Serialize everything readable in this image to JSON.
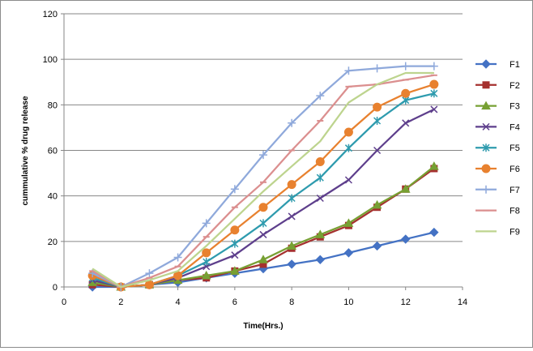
{
  "chart_data": {
    "type": "line",
    "title": "",
    "xlabel": "Time(Hrs.)",
    "ylabel": "cummulative % drug release",
    "xlim": [
      0,
      14
    ],
    "ylim": [
      0,
      120
    ],
    "xticks": [
      0,
      2,
      4,
      6,
      8,
      10,
      12,
      14
    ],
    "yticks": [
      0,
      20,
      40,
      60,
      80,
      100,
      120
    ],
    "grid": "horizontal",
    "legend": "right",
    "x": [
      1,
      2,
      3,
      4,
      5,
      6,
      7,
      8,
      9,
      10,
      11,
      12,
      13
    ],
    "series": [
      {
        "name": "F1",
        "color": "#4472C4",
        "marker": "diamond",
        "values": [
          0,
          0,
          1,
          2,
          4,
          6,
          8,
          10,
          12,
          15,
          18,
          21,
          24
        ]
      },
      {
        "name": "F2",
        "color": "#A5312F",
        "marker": "square",
        "values": [
          1,
          0,
          1,
          3,
          4,
          7,
          10,
          17,
          22,
          27,
          35,
          43,
          52
        ]
      },
      {
        "name": "F3",
        "color": "#77A033",
        "marker": "triangle",
        "values": [
          2,
          0,
          1,
          3,
          5,
          7,
          12,
          18,
          23,
          28,
          36,
          43,
          53
        ]
      },
      {
        "name": "F4",
        "color": "#5E3F8C",
        "marker": "x",
        "values": [
          3,
          0,
          1,
          4,
          9,
          14,
          23,
          31,
          39,
          47,
          60,
          72,
          78
        ]
      },
      {
        "name": "F5",
        "color": "#2E9BAE",
        "marker": "star",
        "values": [
          4,
          0,
          1,
          5,
          11,
          19,
          28,
          39,
          48,
          61,
          73,
          82,
          85
        ]
      },
      {
        "name": "F6",
        "color": "#E8812F",
        "marker": "circle",
        "values": [
          5,
          0,
          1,
          5,
          15,
          25,
          35,
          45,
          55,
          68,
          79,
          85,
          89
        ]
      },
      {
        "name": "F7",
        "color": "#8FA9DB",
        "marker": "plus",
        "values": [
          6,
          0,
          6,
          13,
          28,
          43,
          58,
          72,
          84,
          95,
          96,
          97,
          97
        ]
      },
      {
        "name": "F8",
        "color": "#DB8F8F",
        "marker": "dash",
        "values": [
          7,
          0,
          4,
          9,
          22,
          35,
          46,
          60,
          73,
          88,
          89,
          91,
          93
        ]
      },
      {
        "name": "F9",
        "color": "#BDD48E",
        "marker": "none",
        "values": [
          8,
          0,
          3,
          7,
          18,
          30,
          42,
          53,
          64,
          81,
          89,
          94,
          94
        ]
      }
    ]
  }
}
